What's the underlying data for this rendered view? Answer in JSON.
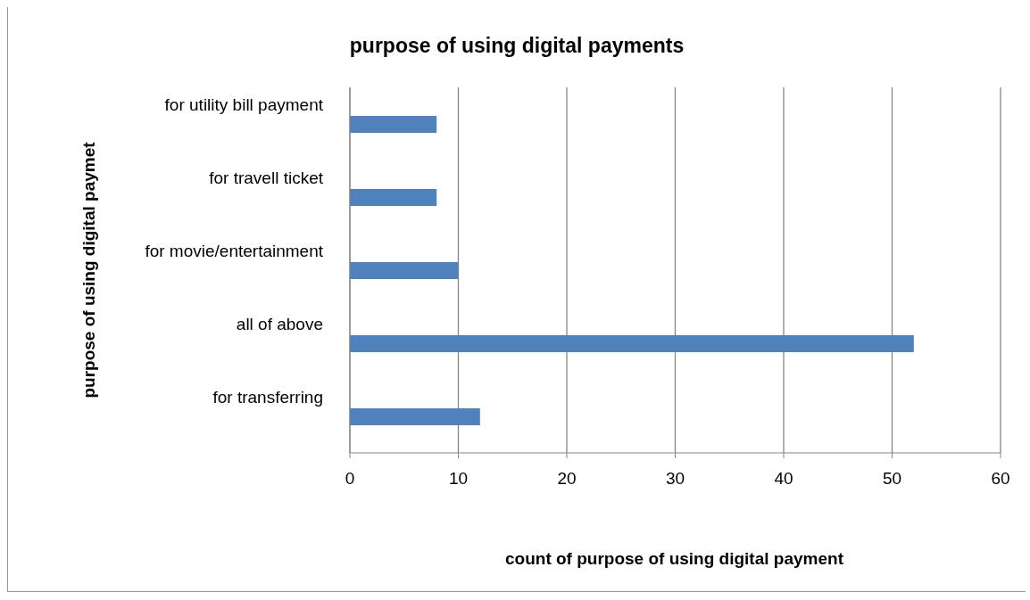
{
  "chart_data": {
    "type": "bar",
    "orientation": "horizontal",
    "title": "purpose of using digital payments",
    "xlabel": "count of purpose of using digital payment",
    "ylabel": "purpose of using digital paymet",
    "categories": [
      "for utility bill payment",
      "for travell ticket",
      "for movie/entertainment",
      "all of above",
      "for transferring"
    ],
    "values": [
      8,
      8,
      10,
      52,
      12
    ],
    "color": "#4f81bd",
    "xlim": [
      0,
      60
    ],
    "xticks": [
      0,
      10,
      20,
      30,
      40,
      50,
      60
    ],
    "grid": "x"
  }
}
